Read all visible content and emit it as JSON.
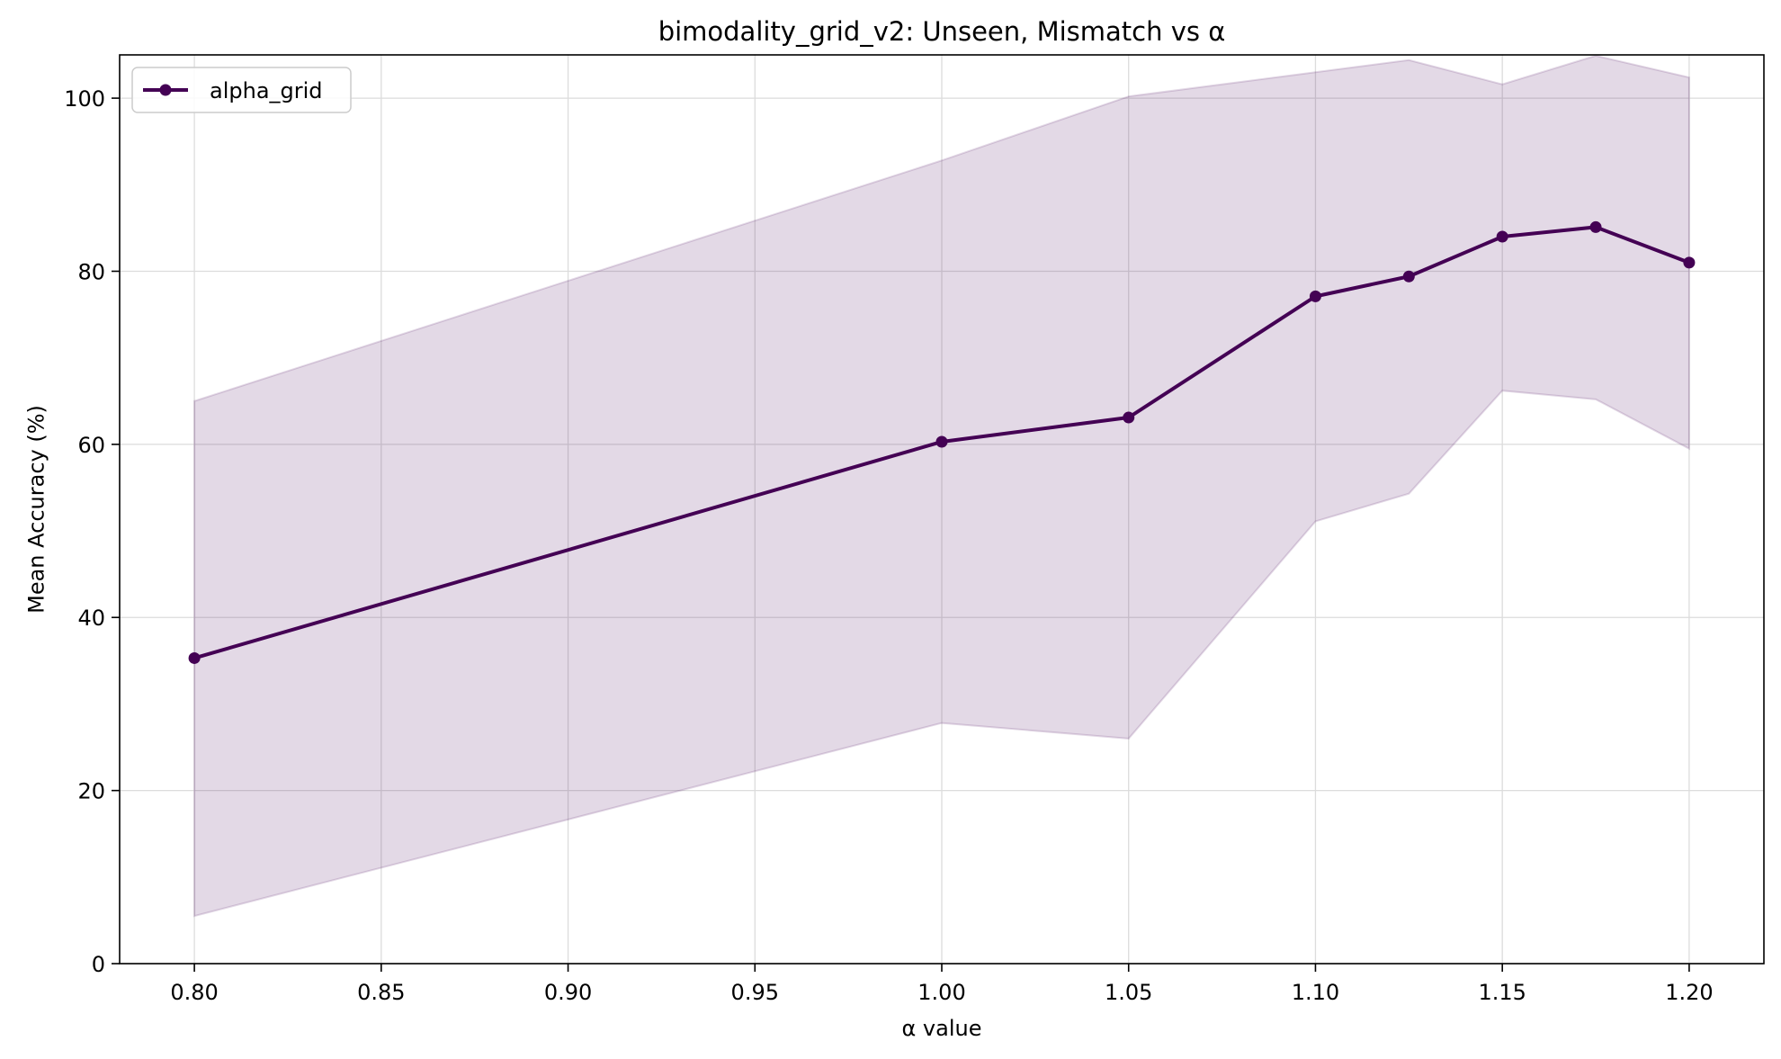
{
  "chart_data": {
    "type": "line",
    "title": "bimodality_grid_v2: Unseen, Mismatch vs α",
    "xlabel": "α value",
    "ylabel": "Mean Accuracy (%)",
    "xlim": [
      0.78,
      1.22
    ],
    "ylim": [
      0,
      105
    ],
    "xticks": [
      0.8,
      0.85,
      0.9,
      0.95,
      1.0,
      1.05,
      1.1,
      1.15,
      1.2
    ],
    "xtick_labels": [
      "0.80",
      "0.85",
      "0.90",
      "0.95",
      "1.00",
      "1.05",
      "1.10",
      "1.15",
      "1.20"
    ],
    "yticks": [
      0,
      20,
      40,
      60,
      80,
      100
    ],
    "ytick_labels": [
      "0",
      "20",
      "40",
      "60",
      "80",
      "100"
    ],
    "grid": true,
    "legend_position": "top-left",
    "series": [
      {
        "name": "alpha_grid",
        "color": "#440154",
        "band_color": "#440154",
        "x": [
          0.8,
          1.0,
          1.05,
          1.1,
          1.125,
          1.15,
          1.175,
          1.2
        ],
        "y": [
          35.3,
          60.3,
          63.1,
          77.1,
          79.4,
          84.0,
          85.1,
          81.0
        ],
        "upper": [
          65.0,
          92.8,
          100.2,
          103.0,
          104.4,
          101.6,
          104.9,
          102.4
        ],
        "lower": [
          5.5,
          27.8,
          26.0,
          51.1,
          54.3,
          66.2,
          65.2,
          59.5
        ]
      }
    ]
  }
}
